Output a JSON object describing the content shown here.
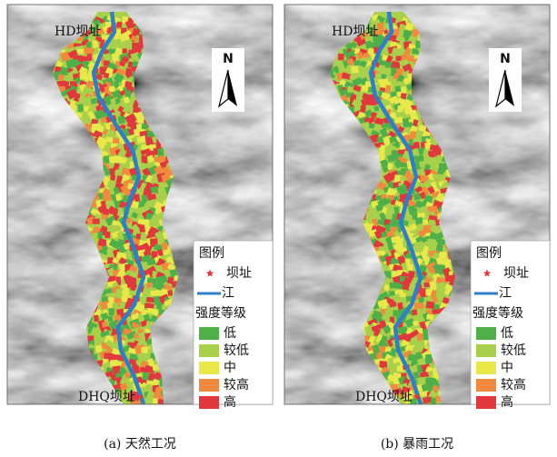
{
  "panels": [
    {
      "caption": "(a) 天然工况",
      "dam_labels": [
        "HD坝址",
        "DHQ坝址"
      ],
      "north": "N",
      "legend": {
        "title": "图例",
        "items": [
          "坝址",
          "江"
        ],
        "grade_title": "强度等级",
        "grades": [
          {
            "label": "低",
            "color": "#4fb04a"
          },
          {
            "label": "较低",
            "color": "#a9d04a"
          },
          {
            "label": "中",
            "color": "#e8e84a"
          },
          {
            "label": "较高",
            "color": "#f08a3c"
          },
          {
            "label": "高",
            "color": "#e0383c"
          }
        ]
      }
    },
    {
      "caption": "(b) 暴雨工况",
      "dam_labels": [
        "HD坝址",
        "DHQ坝址"
      ],
      "north": "N",
      "legend": {
        "title": "图例",
        "items": [
          "坝址",
          "江"
        ],
        "grade_title": "强度等级",
        "grades": [
          {
            "label": "低",
            "color": "#4fb04a"
          },
          {
            "label": "较低",
            "color": "#a9d04a"
          },
          {
            "label": "中",
            "color": "#e8e84a"
          },
          {
            "label": "较高",
            "color": "#f08a3c"
          },
          {
            "label": "高",
            "color": "#e0383c"
          }
        ]
      }
    }
  ]
}
